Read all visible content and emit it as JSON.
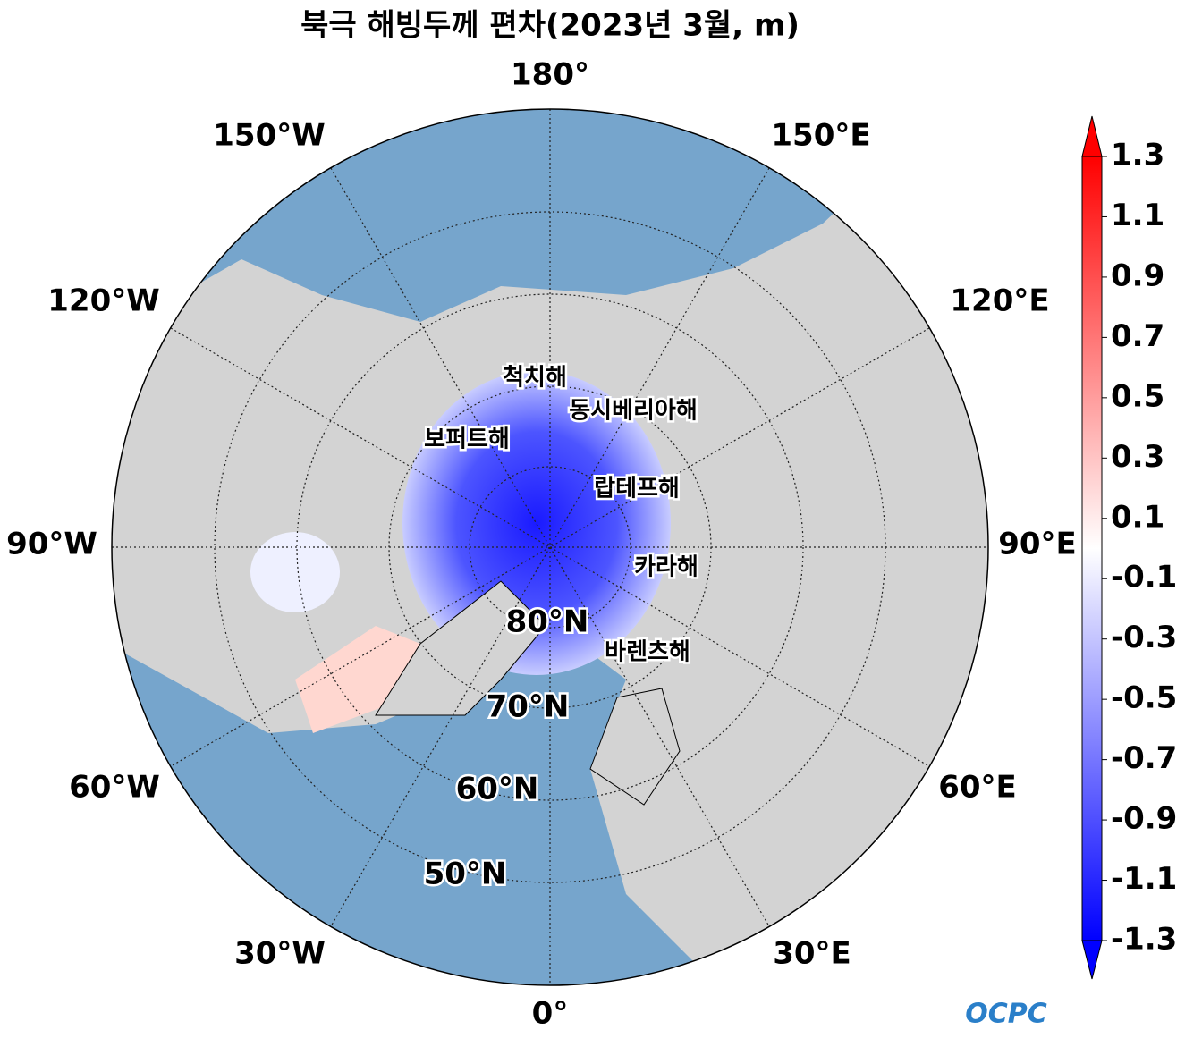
{
  "title": "북극 해빙두께 편차(2023년 3월, m)",
  "longitude_labels": [
    "180°",
    "150°E",
    "120°E",
    "90°E",
    "60°E",
    "30°E",
    "0°",
    "30°W",
    "60°W",
    "90°W",
    "120°W",
    "150°W"
  ],
  "latitude_labels": [
    "80°N",
    "70°N",
    "60°N",
    "50°N"
  ],
  "sea_labels": [
    "척치해",
    "동시베리아해",
    "보퍼트해",
    "랍테프해",
    "카라해",
    "바렌츠해"
  ],
  "colorbar": {
    "lim": [
      -1.3,
      1.3
    ],
    "ticks": [
      1.3,
      1.1,
      0.9,
      0.7,
      0.5,
      0.3,
      0.1,
      -0.1,
      -0.3,
      -0.5,
      -0.7,
      -0.9,
      -1.1,
      -1.3
    ],
    "colors": [
      "#0000ff",
      "#ffffff",
      "#ff0000"
    ]
  },
  "logo": "OCPC"
}
